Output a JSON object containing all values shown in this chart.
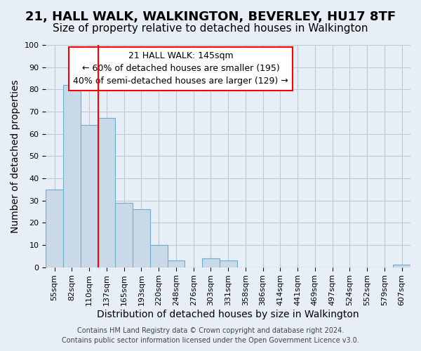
{
  "title": "21, HALL WALK, WALKINGTON, BEVERLEY, HU17 8TF",
  "subtitle": "Size of property relative to detached houses in Walkington",
  "xlabel": "Distribution of detached houses by size in Walkington",
  "ylabel": "Number of detached properties",
  "footer_line1": "Contains HM Land Registry data © Crown copyright and database right 2024.",
  "footer_line2": "Contains public sector information licensed under the Open Government Licence v3.0.",
  "bin_labels": [
    "55sqm",
    "82sqm",
    "110sqm",
    "137sqm",
    "165sqm",
    "193sqm",
    "220sqm",
    "248sqm",
    "276sqm",
    "303sqm",
    "331sqm",
    "358sqm",
    "386sqm",
    "414sqm",
    "441sqm",
    "469sqm",
    "497sqm",
    "524sqm",
    "552sqm",
    "579sqm",
    "607sqm"
  ],
  "bar_values": [
    35,
    82,
    64,
    67,
    29,
    26,
    10,
    3,
    0,
    4,
    3,
    0,
    0,
    0,
    0,
    0,
    0,
    0,
    0,
    0,
    1
  ],
  "bar_color": "#c9d9e8",
  "bar_edgecolor": "#6daed0",
  "grid_color": "#c0c8d8",
  "background_color": "#e8eef5",
  "ylim": [
    0,
    100
  ],
  "annotation_title": "21 HALL WALK: 145sqm",
  "annotation_line1": "← 60% of detached houses are smaller (195)",
  "annotation_line2": "40% of semi-detached houses are larger (129) →",
  "vline_x_index": 3,
  "title_fontsize": 13,
  "subtitle_fontsize": 11,
  "xlabel_fontsize": 10,
  "ylabel_fontsize": 10,
  "tick_fontsize": 8,
  "annotation_fontsize": 9,
  "footer_fontsize": 7
}
